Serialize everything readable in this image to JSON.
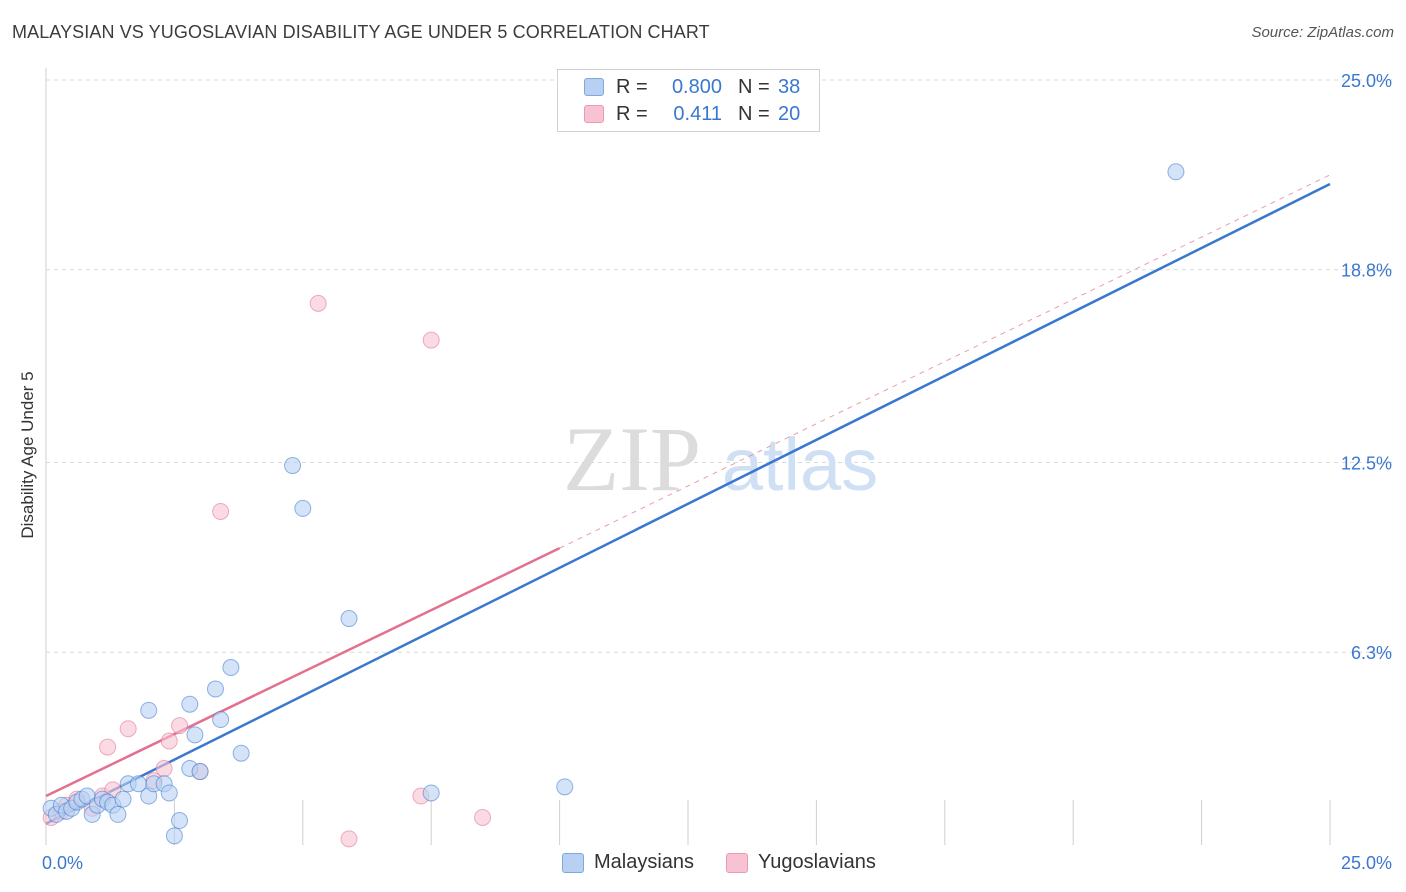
{
  "title": "MALAYSIAN VS YUGOSLAVIAN DISABILITY AGE UNDER 5 CORRELATION CHART",
  "source": "Source: ZipAtlas.com",
  "watermark": {
    "zip": "ZIP",
    "atlas": "atlas"
  },
  "colors": {
    "blue": "#3a78d0",
    "blue_fill": "#b8d0f2",
    "pink": "#e4708f",
    "pink_fill": "#f7c3d2",
    "grid": "#d9d9d9",
    "axis_text": "#3a78d0"
  },
  "legend": {
    "rows": [
      {
        "r_label": "R =",
        "r_value": "0.800",
        "n_label": "N =",
        "n_value": "38"
      },
      {
        "r_label": "R =",
        "r_value": "0.411",
        "n_label": "N =",
        "n_value": "20"
      }
    ]
  },
  "bottom_legend": {
    "series1": "Malaysians",
    "series2": "Yugoslavians"
  },
  "chart_data": {
    "type": "scatter",
    "title": "MALAYSIAN VS YUGOSLAVIAN DISABILITY AGE UNDER 5 CORRELATION CHART",
    "xlabel": "",
    "ylabel": "Disability Age Under 5",
    "xlim": [
      0,
      25
    ],
    "ylim": [
      0,
      25
    ],
    "x_tick_labels": [
      "0.0%",
      "25.0%"
    ],
    "y_ticks": [
      6.3,
      12.5,
      18.8,
      25.0
    ],
    "y_tick_labels": [
      "6.3%",
      "12.5%",
      "18.8%",
      "25.0%"
    ],
    "grid": true,
    "series": [
      {
        "name": "Malaysians",
        "color": "#3a78d0",
        "fill": "#b8d0f2",
        "R": 0.8,
        "N": 38,
        "trend": {
          "x": [
            0,
            25
          ],
          "y": [
            0.7,
            21.6
          ],
          "style": "solid"
        },
        "points": [
          [
            0.1,
            1.2
          ],
          [
            0.2,
            1.0
          ],
          [
            0.3,
            1.3
          ],
          [
            0.4,
            1.1
          ],
          [
            0.5,
            1.2
          ],
          [
            0.6,
            1.4
          ],
          [
            0.7,
            1.5
          ],
          [
            0.8,
            1.6
          ],
          [
            0.9,
            1.0
          ],
          [
            1.0,
            1.3
          ],
          [
            1.1,
            1.5
          ],
          [
            1.2,
            1.4
          ],
          [
            1.3,
            1.3
          ],
          [
            1.4,
            1.0
          ],
          [
            1.5,
            1.5
          ],
          [
            1.6,
            2.0
          ],
          [
            1.8,
            2.0
          ],
          [
            2.0,
            1.6
          ],
          [
            2.1,
            2.0
          ],
          [
            2.3,
            2.0
          ],
          [
            2.4,
            1.7
          ],
          [
            2.5,
            0.3
          ],
          [
            2.6,
            0.8
          ],
          [
            2.8,
            2.5
          ],
          [
            2.9,
            3.6
          ],
          [
            3.0,
            2.4
          ],
          [
            3.3,
            5.1
          ],
          [
            3.4,
            4.1
          ],
          [
            3.6,
            5.8
          ],
          [
            3.8,
            3.0
          ],
          [
            2.0,
            4.4
          ],
          [
            2.8,
            4.6
          ],
          [
            4.8,
            12.4
          ],
          [
            5.0,
            11.0
          ],
          [
            5.9,
            7.4
          ],
          [
            7.5,
            1.7
          ],
          [
            10.1,
            1.9
          ],
          [
            22.0,
            22.0
          ]
        ]
      },
      {
        "name": "Yugoslavians",
        "color": "#e4708f",
        "fill": "#f7c3d2",
        "R": 0.411,
        "N": 20,
        "trend": {
          "x": [
            0,
            10
          ],
          "y": [
            1.6,
            9.7
          ],
          "style": "solid",
          "extension": {
            "x": [
              10,
              25
            ],
            "y": [
              9.7,
              21.9
            ],
            "style": "dashed"
          }
        },
        "points": [
          [
            0.1,
            0.9
          ],
          [
            0.3,
            1.1
          ],
          [
            0.4,
            1.3
          ],
          [
            0.6,
            1.5
          ],
          [
            0.9,
            1.2
          ],
          [
            1.1,
            1.6
          ],
          [
            1.3,
            1.8
          ],
          [
            1.2,
            3.2
          ],
          [
            1.6,
            3.8
          ],
          [
            2.1,
            2.1
          ],
          [
            2.3,
            2.5
          ],
          [
            2.4,
            3.4
          ],
          [
            2.6,
            3.9
          ],
          [
            3.0,
            2.4
          ],
          [
            3.4,
            10.9
          ],
          [
            5.3,
            17.7
          ],
          [
            5.9,
            0.2
          ],
          [
            7.3,
            1.6
          ],
          [
            7.5,
            16.5
          ],
          [
            8.5,
            0.9
          ]
        ]
      }
    ]
  }
}
